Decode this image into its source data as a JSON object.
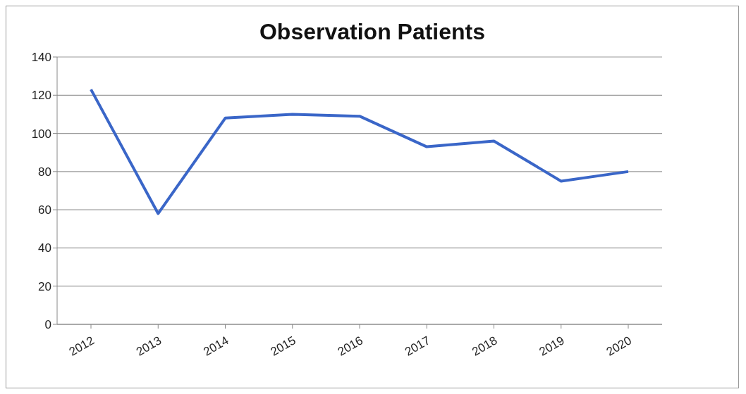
{
  "chart_data": {
    "type": "line",
    "title": "Observation Patients",
    "categories": [
      "2012",
      "2013",
      "2014",
      "2015",
      "2016",
      "2017",
      "2018",
      "2019",
      "2020"
    ],
    "series": [
      {
        "color": "#3a66c8",
        "values": [
          123,
          58,
          108,
          110,
          109,
          93,
          96,
          75,
          80
        ]
      }
    ],
    "ylim": [
      0,
      140
    ],
    "yticks": [
      0,
      20,
      40,
      60,
      80,
      100,
      120,
      140
    ],
    "grid": "y",
    "legend": false,
    "marker": "none",
    "line_style": "solid"
  }
}
